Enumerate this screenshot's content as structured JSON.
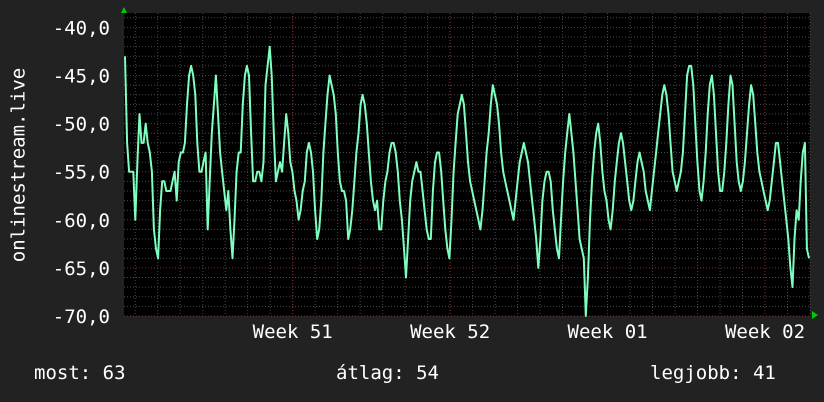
{
  "chart_data": {
    "type": "line",
    "ylabel": "onlinestream.live",
    "ylim": [
      -70,
      -38.5
    ],
    "y_ticks": [
      "-40,0",
      "-45,0",
      "-50,0",
      "-55,0",
      "-60,0",
      "-65,0",
      "-70,0"
    ],
    "y_tick_values": [
      -40,
      -45,
      -50,
      -55,
      -60,
      -65,
      -70
    ],
    "x_tick_labels": [
      "Week 51",
      "Week 52",
      "Week 01",
      "Week 02"
    ],
    "x_tick_positions": [
      5,
      12,
      19,
      26
    ],
    "xlim": [
      -2.5,
      28
    ],
    "grid": true,
    "series": [
      {
        "color": "#7fffbf",
        "values": [
          -43,
          -52,
          -55,
          -55,
          -55,
          -60,
          -54,
          -49,
          -52,
          -52,
          -50,
          -52,
          -53,
          -55,
          -61,
          -63,
          -64,
          -59,
          -56,
          -56,
          -57,
          -57,
          -57,
          -56,
          -55,
          -58,
          -54,
          -53,
          -53,
          -52,
          -48,
          -45,
          -44,
          -45,
          -47,
          -52,
          -55,
          -55,
          -54,
          -53,
          -61,
          -56,
          -51,
          -48,
          -45,
          -49,
          -53,
          -55,
          -57,
          -59,
          -57,
          -61,
          -64,
          -60,
          -55,
          -53,
          -53,
          -48,
          -45,
          -44,
          -45,
          -51,
          -56,
          -56,
          -55,
          -55,
          -56,
          -54,
          -46,
          -44,
          -42,
          -45,
          -51,
          -56,
          -55,
          -54,
          -55,
          -52,
          -49,
          -51,
          -54,
          -55,
          -57,
          -58,
          -60,
          -59,
          -57,
          -56,
          -53,
          -52,
          -53,
          -55,
          -59,
          -62,
          -61,
          -58,
          -53,
          -50,
          -47,
          -45,
          -46,
          -47,
          -49,
          -53,
          -56,
          -57,
          -57,
          -58,
          -62,
          -61,
          -59,
          -56,
          -53,
          -51,
          -48,
          -47,
          -48,
          -50,
          -53,
          -56,
          -58,
          -59,
          -58,
          -61,
          -61,
          -58,
          -56,
          -55,
          -53,
          -52,
          -52,
          -53,
          -55,
          -58,
          -60,
          -63,
          -66,
          -62,
          -58,
          -56,
          -55,
          -54,
          -55,
          -55,
          -57,
          -59,
          -61,
          -62,
          -62,
          -57,
          -54,
          -53,
          -53,
          -55,
          -58,
          -61,
          -63,
          -64,
          -60,
          -55,
          -52,
          -49,
          -48,
          -47,
          -48,
          -51,
          -54,
          -56,
          -57,
          -58,
          -59,
          -60,
          -61,
          -59,
          -56,
          -53,
          -51,
          -48,
          -46,
          -47,
          -48,
          -50,
          -53,
          -55,
          -56,
          -57,
          -58,
          -59,
          -60,
          -58,
          -56,
          -54,
          -53,
          -52,
          -53,
          -54,
          -56,
          -58,
          -60,
          -62,
          -65,
          -62,
          -58,
          -56,
          -55,
          -55,
          -56,
          -59,
          -61,
          -63,
          -64,
          -60,
          -56,
          -53,
          -51,
          -49,
          -51,
          -53,
          -56,
          -59,
          -62,
          -63,
          -64,
          -70,
          -66,
          -60,
          -56,
          -53,
          -51,
          -50,
          -52,
          -55,
          -57,
          -58,
          -60,
          -61,
          -59,
          -56,
          -54,
          -52,
          -51,
          -52,
          -54,
          -56,
          -58,
          -59,
          -58,
          -56,
          -54,
          -53,
          -54,
          -55,
          -57,
          -58,
          -59,
          -57,
          -55,
          -53,
          -51,
          -49,
          -47,
          -46,
          -47,
          -49,
          -52,
          -55,
          -56,
          -57,
          -56,
          -55,
          -53,
          -49,
          -45,
          -44,
          -44,
          -46,
          -50,
          -54,
          -57,
          -58,
          -56,
          -53,
          -49,
          -46,
          -45,
          -47,
          -51,
          -55,
          -57,
          -57,
          -55,
          -52,
          -48,
          -45,
          -46,
          -50,
          -54,
          -56,
          -57,
          -56,
          -54,
          -51,
          -48,
          -46,
          -47,
          -50,
          -53,
          -55,
          -56,
          -57,
          -58,
          -59,
          -58,
          -56,
          -54,
          -52,
          -52,
          -54,
          -56,
          -58,
          -60,
          -62,
          -65,
          -67,
          -62,
          -59,
          -60,
          -56,
          -53,
          -52,
          -63,
          -64
        ]
      }
    ]
  },
  "footer": {
    "current": "most: 63",
    "average": "átlag: 54",
    "best": "legjobb: 41"
  },
  "colors": {
    "background": "#222222",
    "plot_background": "#000000",
    "line": "#7fffbf",
    "text": "#ffffff",
    "grid": "#4a4a4a",
    "major_grid": "#8a2a2a",
    "axis_arrow": "#00cc00"
  }
}
